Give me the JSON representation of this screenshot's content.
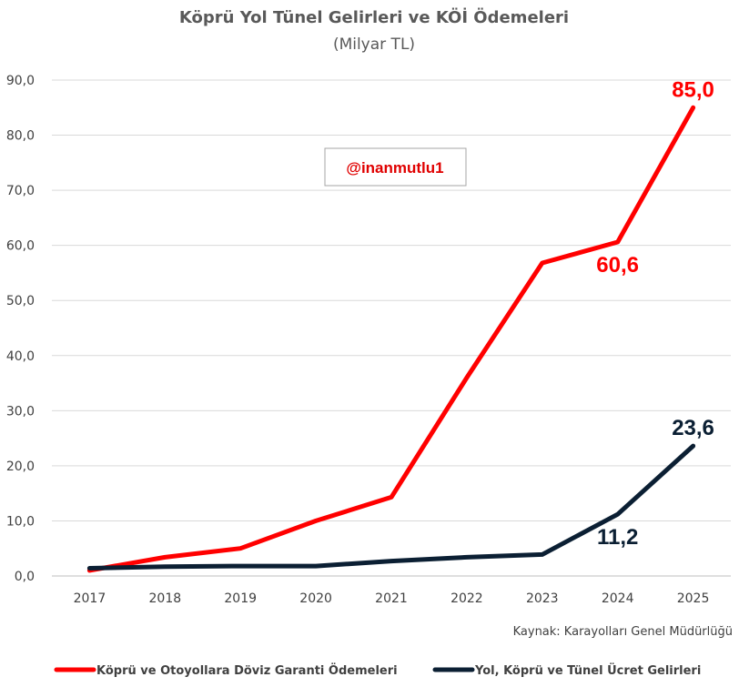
{
  "chart_data": {
    "type": "line",
    "title": "Köprü Yol Tünel Gelirleri ve KÖİ Ödemeleri",
    "subtitle": "(Milyar TL)",
    "xlabel": "",
    "ylabel": "",
    "ylim": [
      0,
      90
    ],
    "yticks": [
      "0,0",
      "10,0",
      "20,0",
      "30,0",
      "40,0",
      "50,0",
      "60,0",
      "70,0",
      "80,0",
      "90,0"
    ],
    "categories": [
      "2017",
      "2018",
      "2019",
      "2020",
      "2021",
      "2022",
      "2023",
      "2024",
      "2025"
    ],
    "grid": true,
    "legend_position": "bottom",
    "series": [
      {
        "name": "Köprü ve Otoyollara Döviz Garanti Ödemeleri",
        "color": "#ff0000",
        "values": [
          1.0,
          3.4,
          5.0,
          10.0,
          14.3,
          36.0,
          56.8,
          60.6,
          85.0
        ]
      },
      {
        "name": "Yol, Köprü ve Tünel Ücret Gelirleri",
        "color": "#0b1f33",
        "values": [
          1.4,
          1.7,
          1.8,
          1.8,
          2.7,
          3.4,
          3.9,
          11.2,
          23.6
        ]
      }
    ],
    "data_labels": [
      {
        "series": 0,
        "index": 8,
        "text": "85,0",
        "position": "above"
      },
      {
        "series": 0,
        "index": 7,
        "text": "60,6",
        "position": "below"
      },
      {
        "series": 1,
        "index": 8,
        "text": "23,6",
        "position": "above"
      },
      {
        "series": 1,
        "index": 7,
        "text": "11,2",
        "position": "below"
      }
    ],
    "annotation": "@inanmutlu1",
    "source": "Kaynak: Karayolları Genel Müdürlüğü"
  }
}
